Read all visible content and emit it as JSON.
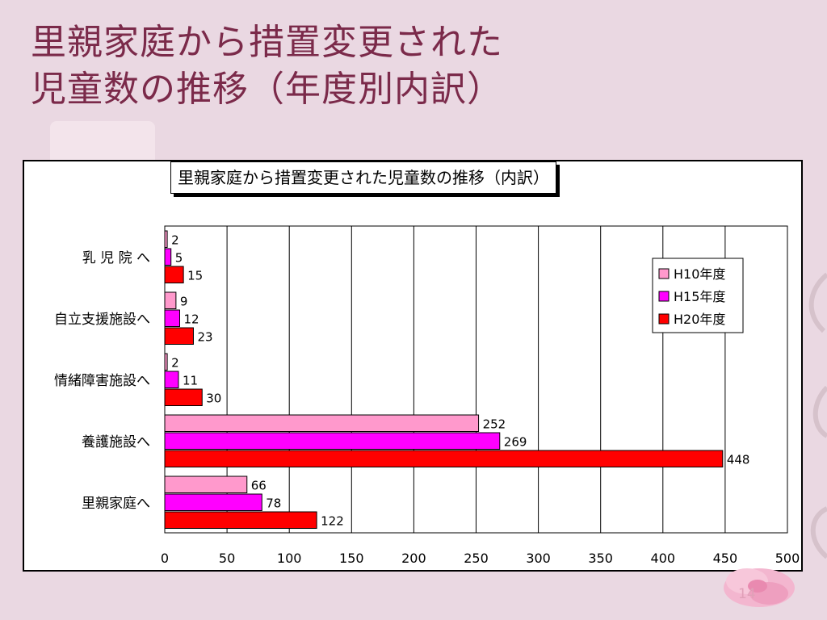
{
  "slide": {
    "title_line1": "里親家庭から措置変更された",
    "title_line2": "児童数の推移（年度別内訳）",
    "page_number": "14"
  },
  "chart_data": {
    "type": "bar",
    "orientation": "horizontal",
    "title": "里親家庭から措置変更された児童数の推移（内訳）",
    "categories": [
      "乳 児 院 へ",
      "自立支援施設へ",
      "情緒障害施設へ",
      "養護施設へ",
      "里親家庭へ"
    ],
    "series": [
      {
        "name": "H10年度",
        "color": "#ff99cc",
        "values": [
          2,
          9,
          2,
          252,
          66
        ]
      },
      {
        "name": "H15年度",
        "color": "#ff00ff",
        "values": [
          5,
          12,
          11,
          269,
          78
        ]
      },
      {
        "name": "H20年度",
        "color": "#ff0000",
        "values": [
          15,
          23,
          30,
          448,
          122
        ]
      }
    ],
    "xlim": [
      0,
      500
    ],
    "xticks": [
      0,
      50,
      100,
      150,
      200,
      250,
      300,
      350,
      400,
      450,
      500
    ],
    "grid": true,
    "legend_position": "top-right",
    "data_labels": true
  }
}
